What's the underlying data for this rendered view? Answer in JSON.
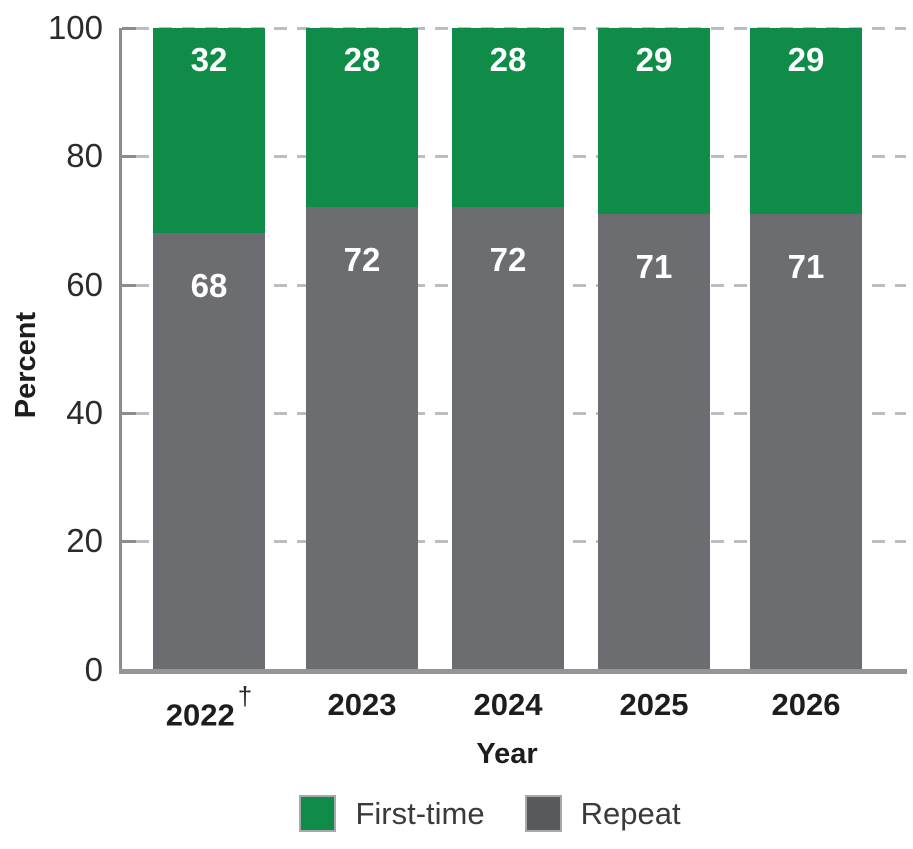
{
  "chart_data": {
    "type": "bar",
    "stacked": true,
    "title": "",
    "xlabel": "Year",
    "ylabel": "Percent",
    "categories": [
      "2022",
      "2023",
      "2024",
      "2025",
      "2026"
    ],
    "category_footnote": {
      "category": "2022",
      "symbol": "†"
    },
    "series": [
      {
        "name": "First-time",
        "color": "#0f8c47",
        "values": [
          32,
          28,
          28,
          29,
          29
        ]
      },
      {
        "name": "Repeat",
        "color": "#6b6d70",
        "values": [
          68,
          72,
          72,
          71,
          71
        ]
      }
    ],
    "ylim": [
      0,
      100
    ],
    "yticks": [
      "100",
      "80",
      "60",
      "40",
      "20",
      "0"
    ],
    "grid": "dashed horizontal gridlines",
    "legend_position": "bottom",
    "legend": [
      {
        "label": "First-time",
        "swatch_color": "#0f8c47"
      },
      {
        "label": "Repeat",
        "swatch_color": "#58595b"
      }
    ]
  },
  "colors": {
    "axis_line": "#8a8c8e",
    "baseline": "#939598",
    "gridline": "#bbbdbf",
    "bar_green": "#0f8c47",
    "bar_gray": "#6b6d70",
    "value_label_text": "#ffffff",
    "tick_label_text": "#2b2b2b",
    "axis_title_text": "#1d1d1f",
    "legend_text": "#3a3a3c",
    "swatch_border": "#a7a9ac"
  }
}
